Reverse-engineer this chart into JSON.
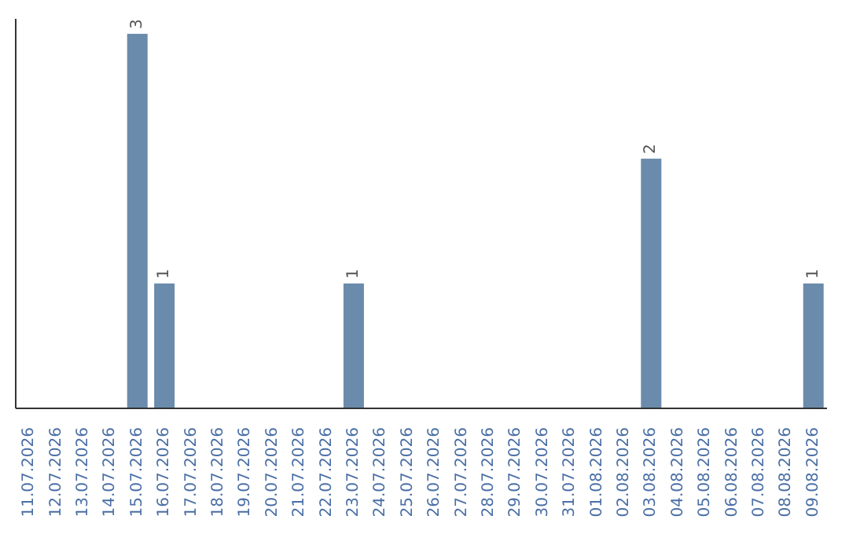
{
  "chart_data": {
    "type": "bar",
    "categories": [
      "11.07.2026",
      "12.07.2026",
      "13.07.2026",
      "14.07.2026",
      "15.07.2026",
      "16.07.2026",
      "17.07.2026",
      "18.07.2026",
      "19.07.2026",
      "20.07.2026",
      "21.07.2026",
      "22.07.2026",
      "23.07.2026",
      "24.07.2026",
      "25.07.2026",
      "26.07.2026",
      "27.07.2026",
      "28.07.2026",
      "29.07.2026",
      "30.07.2026",
      "31.07.2026",
      "01.08.2026",
      "02.08.2026",
      "03.08.2026",
      "04.08.2026",
      "05.08.2026",
      "06.08.2026",
      "07.08.2026",
      "08.08.2026",
      "09.08.2026"
    ],
    "values": [
      0,
      0,
      0,
      0,
      3,
      1,
      0,
      0,
      0,
      0,
      0,
      0,
      1,
      0,
      0,
      0,
      0,
      0,
      0,
      0,
      0,
      0,
      0,
      2,
      0,
      0,
      0,
      0,
      0,
      1
    ],
    "value_labels": [
      null,
      null,
      null,
      null,
      "3",
      "1",
      null,
      null,
      null,
      null,
      null,
      null,
      "1",
      null,
      null,
      null,
      null,
      null,
      null,
      null,
      null,
      null,
      null,
      "2",
      null,
      null,
      null,
      null,
      null,
      "1"
    ],
    "color": "#6a8bab",
    "relative": false,
    "grid": false,
    "legend": false
  }
}
